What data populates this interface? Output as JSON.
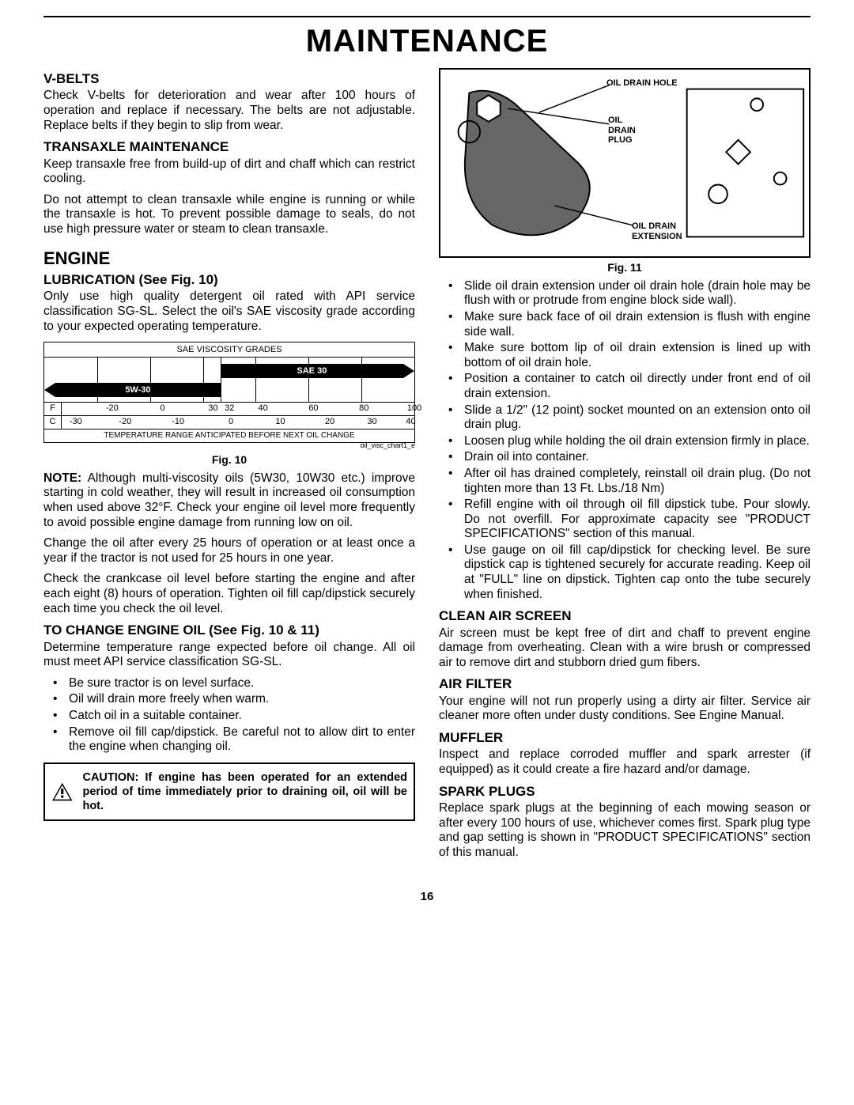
{
  "page_title": "MAINTENANCE",
  "page_number": "16",
  "left": {
    "vbelts": {
      "heading": "V-BELTS",
      "body": "Check V-belts for deterioration and wear after 100 hours of operation and replace if necessary. The belts are not adjustable. Replace belts if they begin to slip from wear."
    },
    "transaxle": {
      "heading": "TRANSAXLE MAINTENANCE",
      "p1": "Keep transaxle free from build-up of dirt and chaff which can restrict cooling.",
      "p2": "Do not attempt to clean transaxle while engine is running or while the transaxle is hot. To prevent possible damage to seals, do not use high pressure water or steam to clean transaxle."
    },
    "engine": {
      "heading": "ENGINE",
      "lubrication": {
        "heading": "LUBRICATION (See Fig. 10)",
        "p1": "Only use high quality detergent oil rated with API service classification SG-SL.  Select the oil's SAE viscosity grade according to your expected operating temperature."
      },
      "viscosity_chart": {
        "title": "SAE VISCOSITY GRADES",
        "band_top_label": "SAE 30",
        "band_bottom_label": "5W-30",
        "grid_positions_pct": [
          0,
          14.3,
          28.6,
          42.9,
          47.6,
          57.1,
          71.4,
          85.7,
          100
        ],
        "top_band": {
          "left_pct": 47.6,
          "right_pct": 100
        },
        "bottom_band": {
          "left_pct": 0,
          "right_pct": 47.6
        },
        "scale_f": {
          "label": "F",
          "ticks": [
            {
              "pos_pct": 14.3,
              "val": "-20"
            },
            {
              "pos_pct": 28.6,
              "val": "0"
            },
            {
              "pos_pct": 42.9,
              "val": "30"
            },
            {
              "pos_pct": 47.6,
              "val": "32"
            },
            {
              "pos_pct": 57.1,
              "val": "40"
            },
            {
              "pos_pct": 71.4,
              "val": "60"
            },
            {
              "pos_pct": 85.7,
              "val": "80"
            },
            {
              "pos_pct": 100,
              "val": "100"
            }
          ]
        },
        "scale_c": {
          "label": "C",
          "ticks": [
            {
              "pos_pct": 4,
              "val": "-30"
            },
            {
              "pos_pct": 18,
              "val": "-20"
            },
            {
              "pos_pct": 33,
              "val": "-10"
            },
            {
              "pos_pct": 48,
              "val": "0"
            },
            {
              "pos_pct": 62,
              "val": "10"
            },
            {
              "pos_pct": 76,
              "val": "20"
            },
            {
              "pos_pct": 88,
              "val": "30"
            },
            {
              "pos_pct": 99,
              "val": "40"
            }
          ]
        },
        "footer": "TEMPERATURE RANGE ANTICIPATED BEFORE NEXT OIL CHANGE",
        "micro": "oil_visc_chart1_e",
        "caption": "Fig. 10"
      },
      "note": "NOTE:  Although multi-viscosity oils (5W30, 10W30 etc.) improve starting in cold weather, they will result in increased oil consumption when used above 32°F.  Check your engine oil level more frequently to avoid possible engine damage from running low on oil.",
      "p_change_interval": "Change the oil after every 25 hours of operation or at least once a year if the tractor is not used for 25 hours in one year.",
      "p_check_crankcase": "Check the crankcase oil level before starting the engine and after each eight (8) hours of operation.  Tighten oil fill cap/dipstick securely each time you check the oil level.",
      "change_oil": {
        "heading": "TO CHANGE ENGINE OIL (See Fig. 10 & 11)",
        "p1": "Determine temperature range expected before oil change. All oil must meet API service classification SG-SL.",
        "bullets": [
          "Be sure tractor is on level surface.",
          "Oil will drain more freely when warm.",
          "Catch oil in a suitable container.",
          "Remove oil fill cap/dipstick.  Be careful not to allow dirt to enter the engine when changing oil."
        ]
      },
      "caution": "CAUTION: If engine has been operated for an extended period of time immediately prior to draining oil, oil will be hot."
    }
  },
  "right": {
    "diagram": {
      "labels": {
        "hole": "OIL DRAIN HOLE",
        "plug": "OIL\nDRAIN\nPLUG",
        "extension": "OIL DRAIN\nEXTENSION"
      },
      "caption": "Fig. 11"
    },
    "bullets": [
      "Slide oil drain extension under oil drain hole (drain hole may be flush with or protrude from engine block side wall).",
      "Make sure back face of oil drain extension is flush with engine side wall.",
      "Make sure bottom lip of oil drain extension is lined up with bottom of oil drain hole.",
      "Position a container to catch oil directly under front end of oil drain extension.",
      "Slide a 1/2\" (12 point) socket mounted on an extension onto oil drain plug.",
      "Loosen plug while holding the oil drain extension firmly in place.",
      "Drain oil into container.",
      "After oil has drained completely, reinstall oil drain plug. (Do not tighten more than 13 Ft. Lbs./18 Nm)",
      "Refill engine with oil through oil fill dipstick tube.  Pour slowly.  Do not overfill.  For approximate capacity see \"PRODUCT SPECIFICATIONS\" section of this manual.",
      "Use gauge on oil fill cap/dipstick for checking level. Be sure dipstick cap is tightened securely for accurate reading.  Keep oil at \"FULL\" line on dipstick. Tighten cap onto the tube securely when finished."
    ],
    "clean_air": {
      "heading": "CLEAN AIR SCREEN",
      "body": "Air screen must be kept free of dirt and chaff to prevent engine damage from overheating.  Clean with a wire brush or compressed air to remove dirt and stubborn dried gum fibers."
    },
    "air_filter": {
      "heading": "AIR FILTER",
      "body": "Your engine will not run properly using a dirty air filter. Service air cleaner more often under dusty conditions. See Engine Manual."
    },
    "muffler": {
      "heading": "MUFFLER",
      "body": "Inspect and replace corroded muffler and spark arrester (if equipped) as it could create a fire hazard and/or damage."
    },
    "spark_plugs": {
      "heading": "SPARK PLUGS",
      "body": "Replace spark plugs at the beginning of each mowing season or after every 100 hours of use, whichever comes first. Spark plug type and gap setting is shown in \"PRODUCT SPECIFICATIONS\" section of this manual."
    }
  }
}
